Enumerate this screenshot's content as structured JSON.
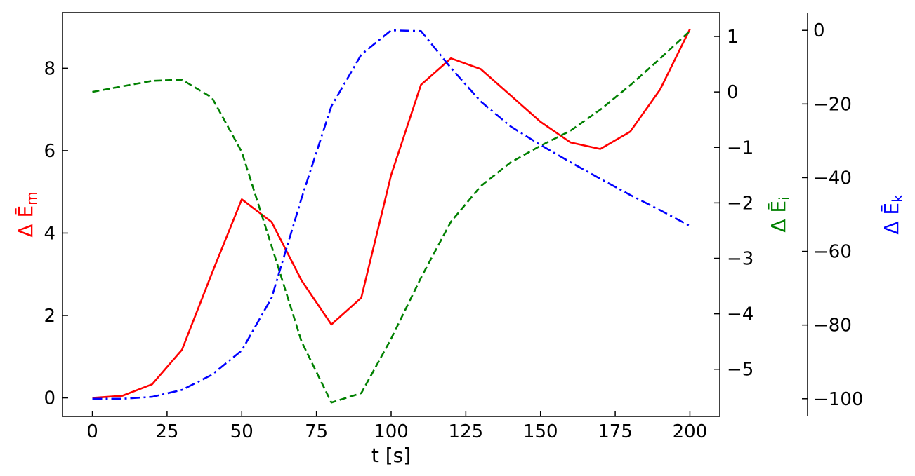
{
  "chart_data": {
    "type": "line",
    "x": [
      0,
      10,
      20,
      30,
      40,
      50,
      60,
      70,
      80,
      90,
      100,
      110,
      120,
      130,
      140,
      150,
      160,
      170,
      180,
      190,
      200
    ],
    "xlabel": "t [s]",
    "xlim": [
      -10,
      210
    ],
    "xticks": [
      0,
      25,
      50,
      75,
      100,
      125,
      150,
      175,
      200
    ],
    "xtick_labels": [
      "0",
      "25",
      "50",
      "75",
      "100",
      "125",
      "150",
      "175",
      "200"
    ],
    "grid": false,
    "axes": [
      {
        "side": "left",
        "label": "Δ Ē",
        "label_sub": "m",
        "color": "#ff0000",
        "ylim": [
          -0.45,
          9.35
        ],
        "ticks": [
          0,
          2,
          4,
          6,
          8
        ],
        "tick_labels": [
          "0",
          "2",
          "4",
          "6",
          "8"
        ]
      },
      {
        "side": "right",
        "label": "Δ Ē",
        "label_sub": "i",
        "color": "#008000",
        "ylim": [
          -5.85,
          1.43
        ],
        "ticks": [
          -5,
          -4,
          -3,
          -2,
          -1,
          0,
          1
        ],
        "tick_labels": [
          "−5",
          "−4",
          "−3",
          "−2",
          "−1",
          "0",
          "1"
        ]
      },
      {
        "side": "right-outer",
        "label": "Δ Ē",
        "label_sub": "k",
        "color": "#0000ff",
        "ylim": [
          -104.8,
          4.8
        ],
        "ticks": [
          -100,
          -80,
          -60,
          -40,
          -20,
          0
        ],
        "tick_labels": [
          "−100",
          "−80",
          "−60",
          "−40",
          "−20",
          "0"
        ]
      }
    ],
    "series": [
      {
        "axis": 0,
        "color": "#ff0000",
        "style": "solid",
        "values": [
          0,
          0.05,
          0.33,
          1.17,
          3.02,
          4.82,
          4.27,
          2.85,
          1.78,
          2.43,
          5.41,
          7.6,
          8.24,
          7.98,
          7.34,
          6.7,
          6.2,
          6.04,
          6.46,
          7.48,
          8.95
        ]
      },
      {
        "axis": 1,
        "color": "#008000",
        "style": "dashed",
        "values": [
          0,
          0.1,
          0.2,
          0.22,
          -0.1,
          -1.08,
          -2.78,
          -4.5,
          -5.6,
          -5.43,
          -4.45,
          -3.35,
          -2.34,
          -1.7,
          -1.27,
          -0.97,
          -0.7,
          -0.32,
          0.12,
          0.6,
          1.1
        ]
      },
      {
        "axis": 2,
        "color": "#0000ff",
        "style": "dashdot",
        "values": [
          -100,
          -100,
          -99.5,
          -97.6,
          -93.5,
          -86.9,
          -72.6,
          -45.6,
          -20.6,
          -6.6,
          0,
          -0.2,
          -10.2,
          -19.3,
          -26.1,
          -31.1,
          -35.8,
          -40.3,
          -44.7,
          -48.8,
          -53.1
        ]
      }
    ]
  }
}
